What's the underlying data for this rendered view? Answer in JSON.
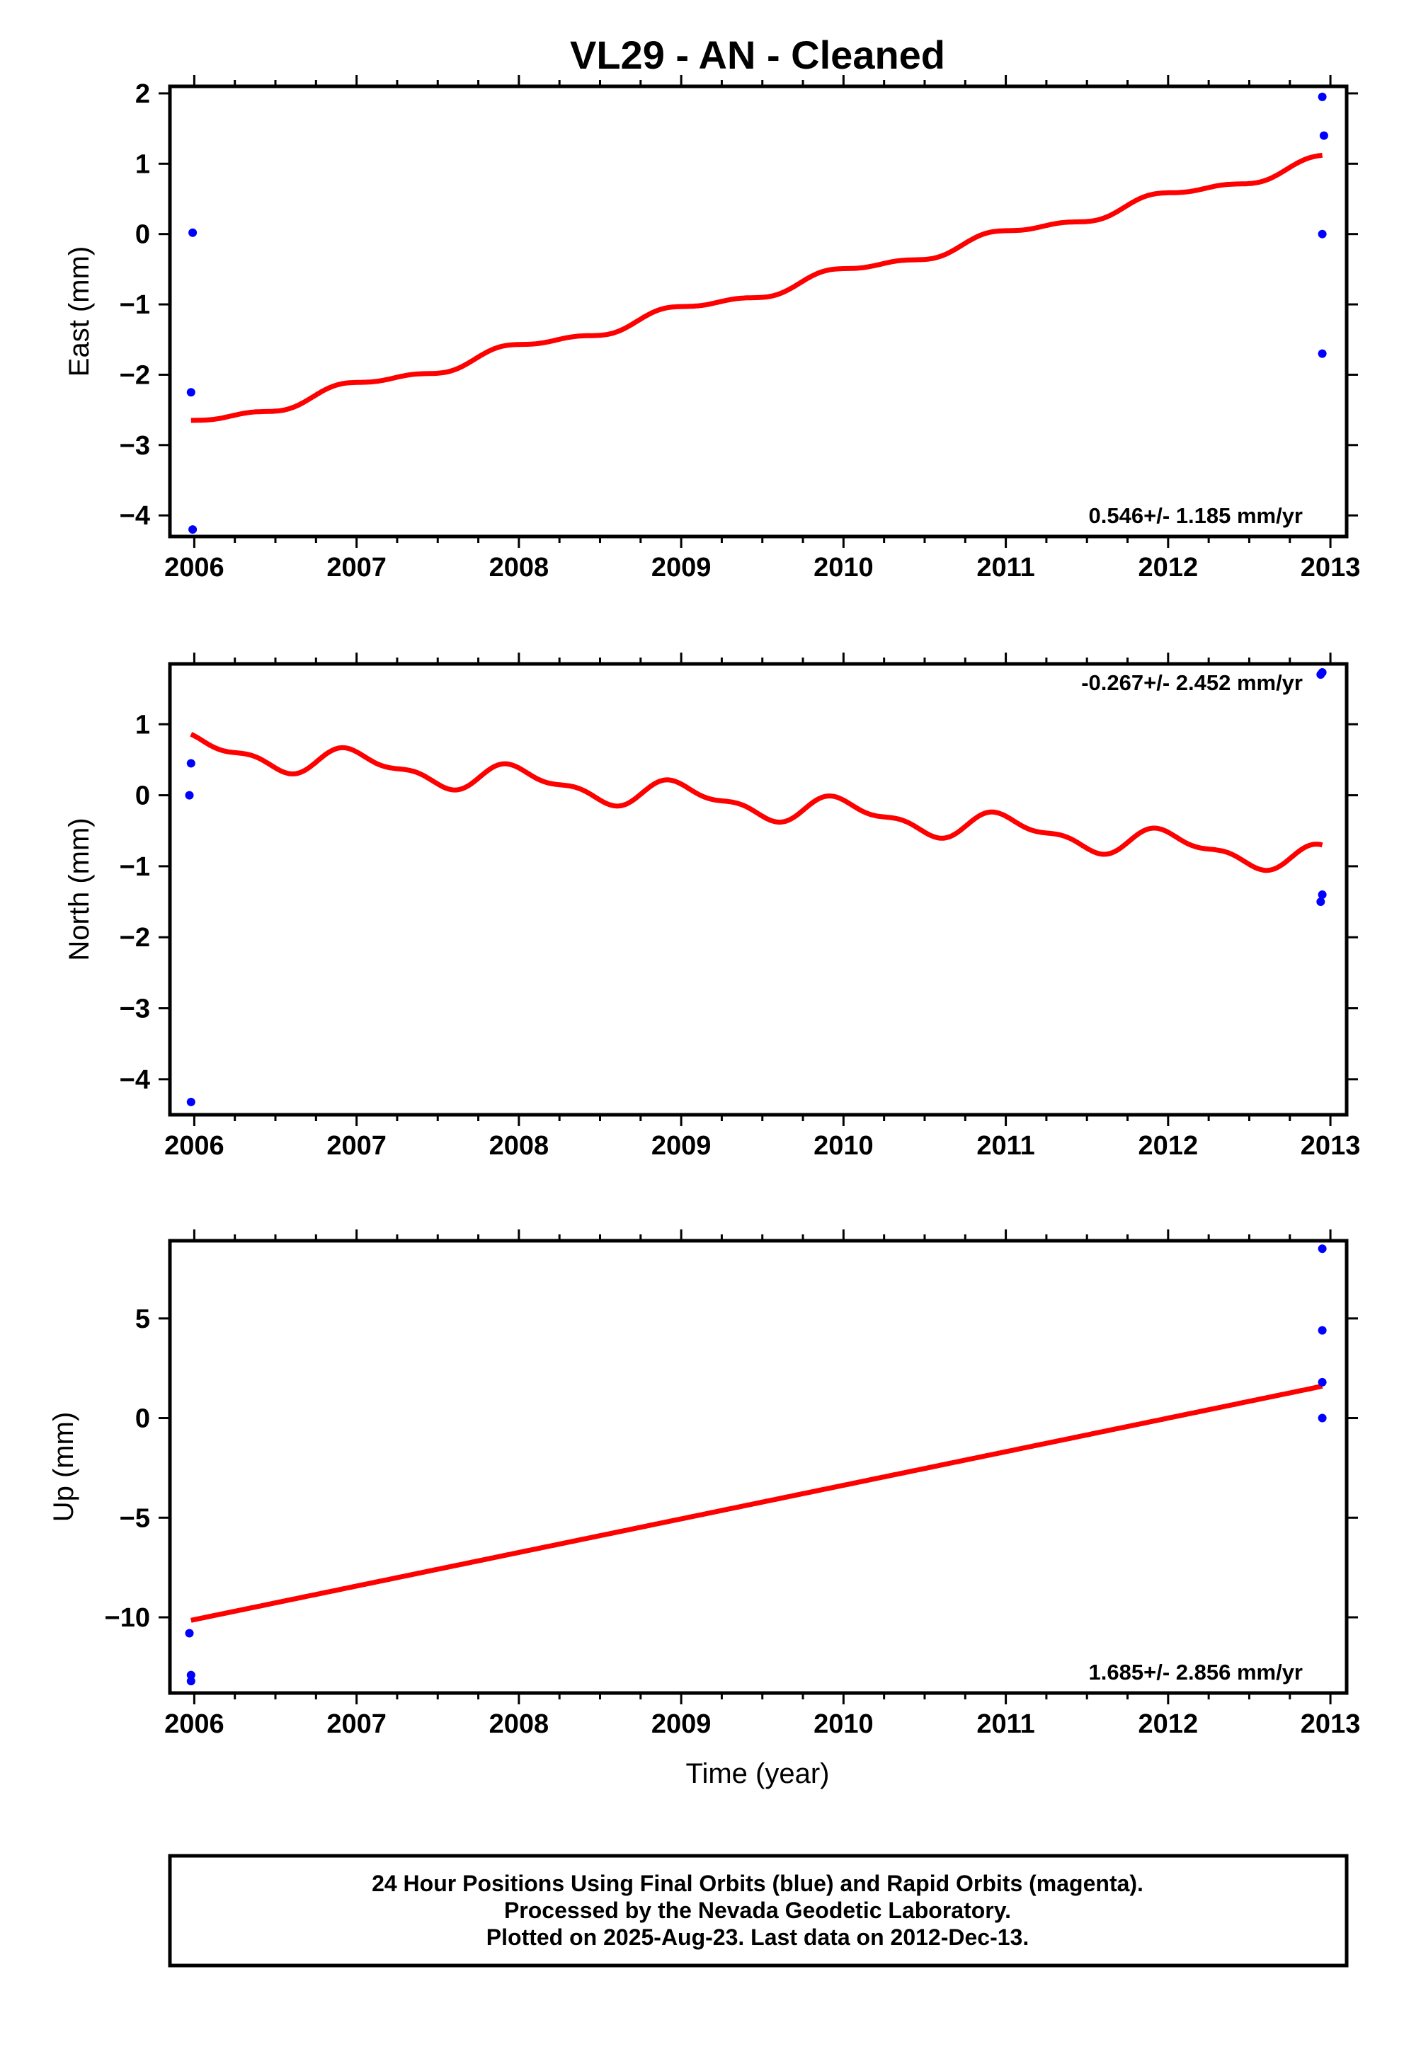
{
  "title": "VL29  - AN - Cleaned",
  "xlabel": "Time (year)",
  "footer": {
    "line1": "24 Hour Positions Using Final Orbits (blue) and Rapid Orbits (magenta).",
    "line2": "Processed by the Nevada Geodetic Laboratory.",
    "line3": "Plotted on 2025-Aug-23. Last data on 2012-Dec-13."
  },
  "colors": {
    "final_orbits": "#0000ff",
    "model": "#ff0000",
    "axes": "#000000"
  },
  "chart_data": [
    {
      "type": "scatter",
      "ylabel": "East (mm)",
      "xlim": [
        2005.85,
        2013.1
      ],
      "ylim": [
        -4.3,
        2.1
      ],
      "xticks": [
        2006,
        2007,
        2008,
        2009,
        2010,
        2011,
        2012,
        2013
      ],
      "yticks": [
        -4,
        -3,
        -2,
        -1,
        0,
        1,
        2
      ],
      "rate_label": "0.546+/- 1.185 mm/yr",
      "rate_position": "bottom-right",
      "points": [
        [
          2005.99,
          0.02
        ],
        [
          2005.98,
          -2.25
        ],
        [
          2005.99,
          -4.2
        ],
        [
          2012.95,
          1.95
        ],
        [
          2012.96,
          1.4
        ],
        [
          2012.95,
          0.0
        ],
        [
          2012.95,
          -1.7
        ]
      ],
      "model": {
        "start": 2005.98,
        "end": 2012.95,
        "value_at_start": -2.65,
        "value_at_end": 1.12,
        "seasonal_amplitude": 0.07,
        "seasonal_phase": 0.25
      }
    },
    {
      "type": "scatter",
      "ylabel": "North (mm)",
      "xlim": [
        2005.85,
        2013.1
      ],
      "ylim": [
        -4.5,
        1.85
      ],
      "xticks": [
        2006,
        2007,
        2008,
        2009,
        2010,
        2011,
        2012,
        2013
      ],
      "yticks": [
        -4,
        -3,
        -2,
        -1,
        0,
        1
      ],
      "rate_label": "-0.267+/- 2.452 mm/yr",
      "rate_position": "top-right",
      "points": [
        [
          2005.98,
          0.45
        ],
        [
          2005.97,
          0.0
        ],
        [
          2005.98,
          -4.32
        ],
        [
          2012.95,
          1.73
        ],
        [
          2012.94,
          1.7
        ],
        [
          2012.95,
          -1.4
        ],
        [
          2012.94,
          -1.5
        ]
      ],
      "model": {
        "start": 2005.98,
        "end": 2012.95,
        "value_at_start": 0.86,
        "value_at_end": -0.7,
        "seasonal_amplitude": 0.17,
        "seasonal_phase": 0.22
      }
    },
    {
      "type": "scatter",
      "ylabel": "Up (mm)",
      "xlim": [
        2005.85,
        2013.1
      ],
      "ylim": [
        -13.8,
        8.9
      ],
      "xticks": [
        2006,
        2007,
        2008,
        2009,
        2010,
        2011,
        2012,
        2013
      ],
      "yticks": [
        -10,
        -5,
        0,
        5
      ],
      "rate_label": "1.685+/- 2.856 mm/yr",
      "rate_position": "bottom-right",
      "points": [
        [
          2005.97,
          -10.8
        ],
        [
          2005.98,
          -12.9
        ],
        [
          2005.98,
          -13.2
        ],
        [
          2012.95,
          8.5
        ],
        [
          2012.95,
          4.4
        ],
        [
          2012.95,
          1.8
        ],
        [
          2012.95,
          0.0
        ]
      ],
      "model": {
        "start": 2005.98,
        "end": 2012.95,
        "value_at_start": -10.15,
        "value_at_end": 1.6,
        "seasonal_amplitude": 0.0,
        "seasonal_phase": 0.0
      }
    }
  ]
}
